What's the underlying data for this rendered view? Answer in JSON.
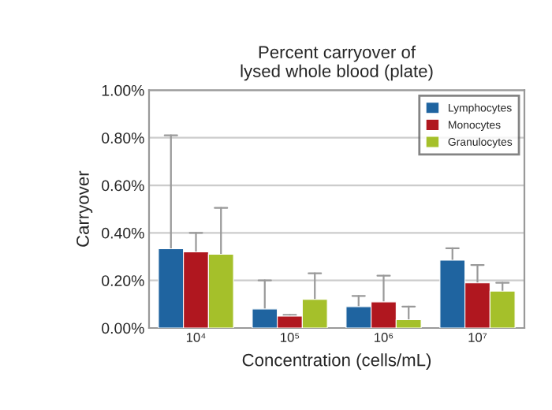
{
  "chart_data": {
    "type": "bar",
    "title": "Percent carryover of\nlysed whole blood (plate)",
    "xlabel": "Concentration (cells/mL)",
    "ylabel": "Carryover",
    "categories": [
      "10⁴",
      "10⁵",
      "10⁶",
      "10⁷"
    ],
    "series": [
      {
        "name": "Lymphocytes",
        "color": "#1f64a0",
        "values": [
          0.333,
          0.08,
          0.09,
          0.285
        ],
        "errors": [
          [
            0.333,
            0.81
          ],
          [
            0.08,
            0.2
          ],
          [
            0.09,
            0.135
          ],
          [
            0.285,
            0.335
          ]
        ]
      },
      {
        "name": "Monocytes",
        "color": "#b0171f",
        "values": [
          0.32,
          0.05,
          0.11,
          0.19
        ],
        "errors": [
          [
            0.32,
            0.4
          ],
          [
            0.05,
            0.055
          ],
          [
            0.11,
            0.22
          ],
          [
            0.19,
            0.265
          ]
        ]
      },
      {
        "name": "Granulocytes",
        "color": "#a5c02a",
        "values": [
          0.31,
          0.12,
          0.035,
          0.155
        ],
        "errors": [
          [
            0.31,
            0.505
          ],
          [
            0.12,
            0.23
          ],
          [
            0.035,
            0.09
          ],
          [
            0.155,
            0.19
          ]
        ]
      }
    ],
    "ylim": [
      0,
      1.0
    ],
    "yticks": [
      {
        "value": 0,
        "label": "0.00%"
      },
      {
        "value": 0.2,
        "label": "0.20%"
      },
      {
        "value": 0.4,
        "label": "0.40%"
      },
      {
        "value": 0.6,
        "label": "0.60%"
      },
      {
        "value": 0.8,
        "label": "0.80%"
      },
      {
        "value": 1.0,
        "label": "1.00%"
      }
    ],
    "grid": "y",
    "legend": "top right"
  }
}
